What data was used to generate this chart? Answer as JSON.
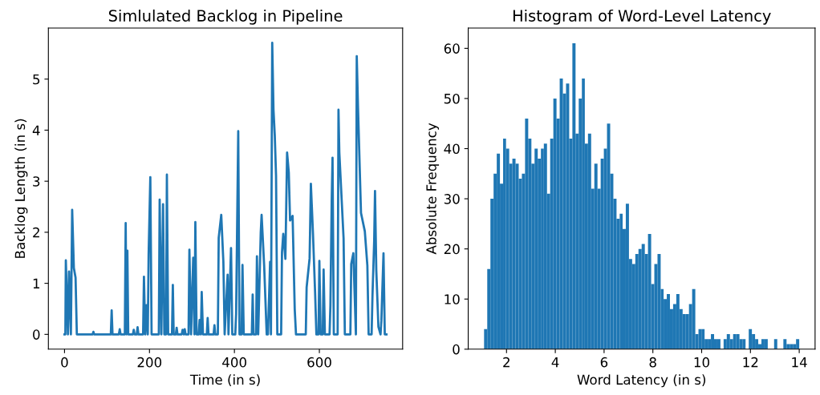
{
  "chart_data": [
    {
      "type": "line",
      "title": "Simlulated Backlog in Pipeline",
      "xlabel": "Time (in s)",
      "ylabel": "Backlog Length (in s)",
      "xlim": [
        -38,
        796
      ],
      "ylim": [
        -0.29,
        6.0
      ],
      "xticks": [
        0,
        200,
        400,
        600
      ],
      "yticks": [
        0,
        1,
        2,
        3,
        4,
        5
      ],
      "grid": false,
      "series": [
        {
          "color": "#1f77b4",
          "x": [
            0,
            2,
            3.1,
            8,
            10.6,
            15,
            18,
            22,
            26,
            29,
            66,
            68,
            70,
            109,
            111,
            113,
            128,
            130,
            132,
            142,
            144,
            146,
            148,
            150,
            161,
            163,
            165,
            170,
            172,
            174,
            185,
            187,
            190,
            193,
            196,
            198,
            202,
            205,
            222,
            224,
            228,
            232,
            235,
            239,
            241,
            244,
            253,
            255,
            257,
            262,
            264,
            266,
            276,
            278,
            281,
            283,
            285,
            292,
            294,
            298,
            303,
            306,
            308,
            311,
            316,
            318,
            321,
            323,
            326,
            335,
            337,
            339,
            351,
            353,
            355,
            361,
            363,
            369,
            374,
            377,
            384,
            386,
            392,
            395,
            402,
            404,
            409,
            412,
            417,
            419,
            422,
            441,
            443,
            445,
            451,
            453,
            456,
            462,
            464,
            470,
            476,
            479,
            484,
            486,
            489,
            492,
            495,
            498,
            501,
            510,
            512,
            515,
            520,
            524,
            528,
            531,
            537,
            542,
            545,
            568,
            570,
            577,
            580,
            585,
            590,
            593,
            598,
            600,
            603,
            608,
            610,
            613,
            624,
            626,
            629,
            631,
            634,
            643,
            645,
            647,
            657,
            660,
            673,
            675,
            680,
            686,
            688,
            691,
            698,
            707,
            713,
            716,
            723,
            725,
            729,
            731,
            734,
            739,
            744,
            746,
            751,
            754,
            758
          ],
          "values": [
            0,
            0,
            1.45,
            0,
            1.23,
            0,
            2.44,
            1.3,
            1.11,
            0,
            0,
            0.05,
            0,
            0,
            0.47,
            0,
            0,
            0.1,
            0,
            0,
            2.18,
            0,
            1.64,
            0,
            0,
            0.09,
            0,
            0,
            0.14,
            0,
            0,
            1.13,
            0,
            0.57,
            0,
            1.56,
            3.08,
            0,
            0,
            2.64,
            0,
            2.55,
            0,
            0,
            3.13,
            0,
            0,
            0.97,
            0,
            0,
            0.13,
            0,
            0,
            0.09,
            0,
            0.1,
            0,
            0,
            1.66,
            0,
            1.5,
            0,
            2.2,
            0,
            0,
            0.28,
            0,
            0.83,
            0,
            0,
            0.32,
            0,
            0,
            0.18,
            0,
            0,
            1.89,
            2.34,
            1.42,
            0,
            1.17,
            0,
            1.69,
            0,
            0,
            0.4,
            3.98,
            0,
            0,
            1.36,
            0,
            0,
            0.78,
            0,
            0,
            1.53,
            0,
            2.0,
            2.34,
            1.35,
            0,
            0,
            1.42,
            0,
            5.71,
            4.4,
            3.9,
            3.11,
            0,
            0,
            1.61,
            1.97,
            1.48,
            3.56,
            3.17,
            2.23,
            2.32,
            0.49,
            0,
            0,
            0.92,
            1.49,
            2.95,
            1.96,
            0.81,
            0,
            0,
            1.44,
            0,
            0,
            1.27,
            0,
            0,
            0.57,
            2.6,
            3.46,
            0,
            0,
            4.4,
            3.56,
            1.88,
            0,
            0,
            1.38,
            1.59,
            0,
            5.45,
            4.44,
            2.38,
            2.02,
            1.35,
            0,
            0,
            0.75,
            1.81,
            2.81,
            1.26,
            0.15,
            0,
            0.27,
            1.59,
            0,
            0
          ]
        }
      ]
    },
    {
      "type": "histogram",
      "title": "Histogram of Word-Level Latency",
      "xlabel": "Word Latency (in s)",
      "ylabel": "Absolute Frequency",
      "xlim": [
        0.43,
        14.65
      ],
      "ylim": [
        0,
        64.05
      ],
      "xticks": [
        2,
        4,
        6,
        8,
        10,
        12,
        14
      ],
      "yticks": [
        0,
        10,
        20,
        30,
        40,
        50,
        60
      ],
      "grid": false,
      "color": "#1f77b4",
      "bins": [
        1.08,
        1.21,
        1.34,
        1.47,
        1.6,
        1.73,
        1.86,
        1.98,
        2.11,
        2.24,
        2.37,
        2.5,
        2.63,
        2.76,
        2.89,
        3.02,
        3.15,
        3.28,
        3.41,
        3.53,
        3.66,
        3.79,
        3.92,
        4.05,
        4.18,
        4.31,
        4.44,
        4.57,
        4.7,
        4.83,
        4.96,
        5.09,
        5.21,
        5.34,
        5.47,
        5.6,
        5.73,
        5.86,
        5.99,
        6.12,
        6.25,
        6.38,
        6.51,
        6.64,
        6.76,
        6.89,
        7.02,
        7.15,
        7.28,
        7.41,
        7.54,
        7.67,
        7.8,
        7.93,
        8.06,
        8.19,
        8.32,
        8.44,
        8.57,
        8.7,
        8.83,
        8.96,
        9.09,
        9.22,
        9.35,
        9.48,
        9.61,
        9.74,
        9.87,
        9.99,
        10.12,
        10.25,
        10.38,
        10.51,
        10.64,
        10.77,
        10.9,
        11.03,
        11.16,
        11.29,
        11.42,
        11.55,
        11.67,
        11.8,
        11.93,
        12.06,
        12.19,
        12.32,
        12.45,
        12.58,
        12.71,
        12.84,
        12.97,
        13.1,
        13.22,
        13.35,
        13.48,
        13.61,
        13.74,
        13.87,
        14.0
      ],
      "values": [
        4,
        16,
        30,
        35,
        39,
        33,
        42,
        40,
        37,
        38,
        37,
        34,
        35,
        46,
        42,
        37,
        40,
        38,
        40,
        41,
        31,
        42,
        50,
        46,
        54,
        51,
        53,
        42,
        61,
        43,
        50,
        54,
        41,
        43,
        32,
        37,
        32,
        38,
        40,
        45,
        35,
        30,
        26,
        27,
        24,
        29,
        18,
        17,
        19,
        20,
        21,
        19,
        23,
        13,
        17,
        19,
        12,
        10,
        11,
        8,
        9,
        11,
        8,
        7,
        7,
        9,
        12,
        3,
        4,
        4,
        2,
        2,
        3,
        2,
        2,
        0,
        2,
        3,
        2,
        3,
        3,
        2,
        2,
        0,
        4,
        3,
        2,
        1,
        2,
        2,
        0,
        0,
        2,
        0,
        0,
        2,
        1,
        1,
        1,
        2
      ]
    }
  ]
}
